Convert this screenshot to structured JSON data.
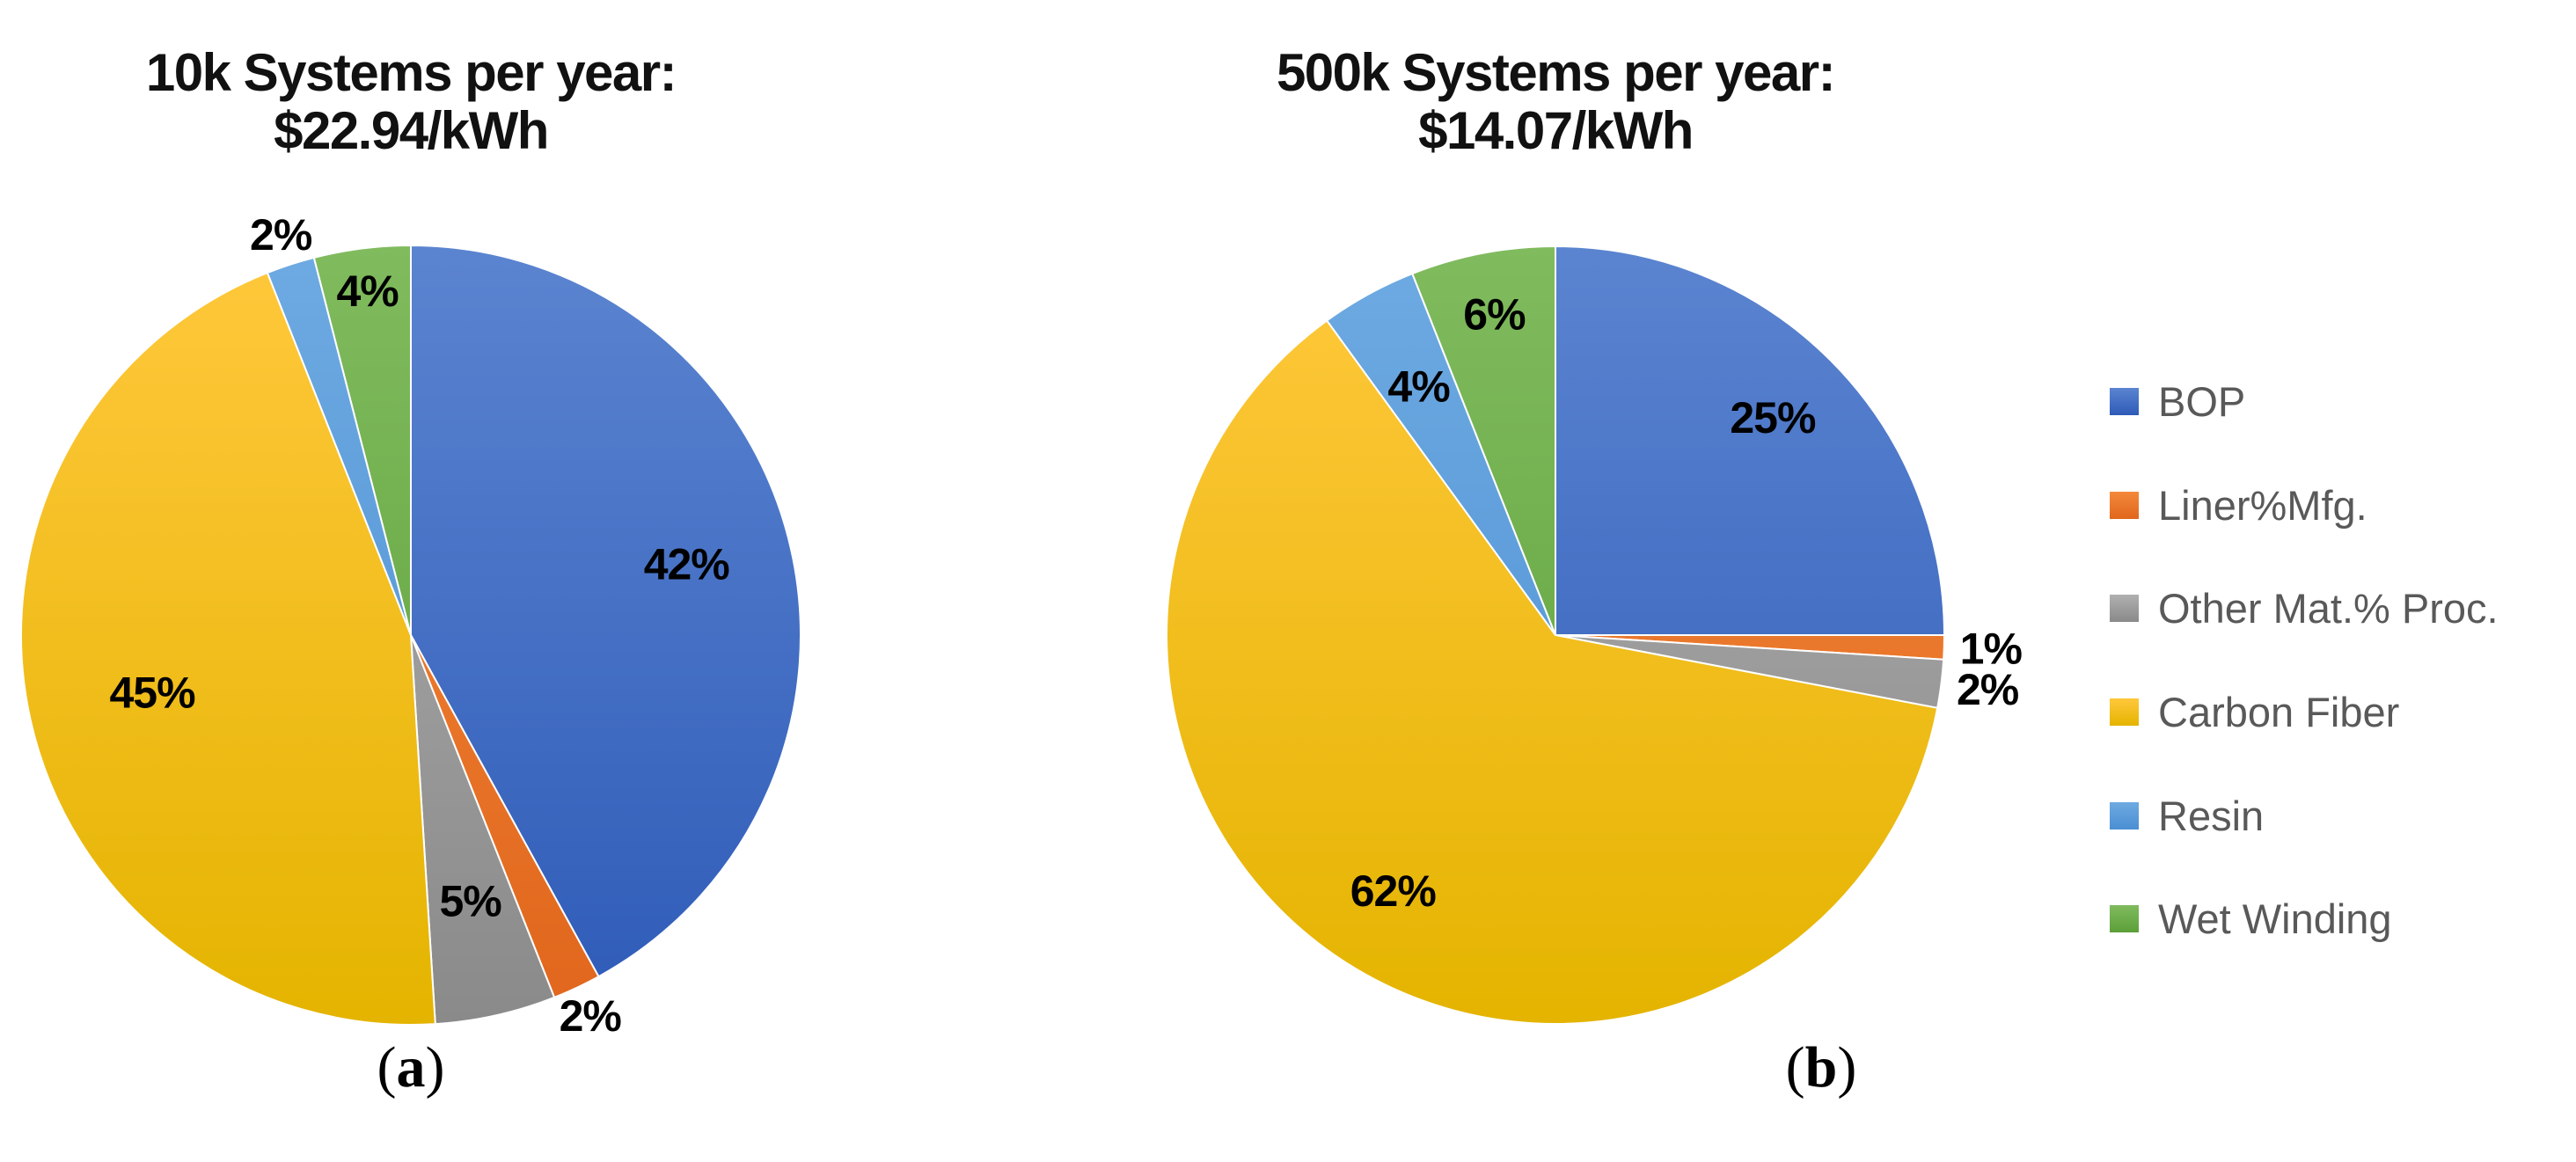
{
  "chart_data": [
    {
      "type": "pie",
      "title": [
        "10k Systems per year:",
        "$22.94/kWh"
      ],
      "panel_label": "a",
      "categories": [
        "BOP",
        "Liner%Mfg.",
        "Other Mat.% Proc.",
        "Carbon Fiber",
        "Resin",
        "Wet Winding"
      ],
      "values": [
        42,
        2,
        5,
        45,
        2,
        4
      ],
      "labels": [
        "42%",
        "2%",
        "5%",
        "45%",
        "2%",
        "4%"
      ]
    },
    {
      "type": "pie",
      "title": [
        "500k Systems per year:",
        "$14.07/kWh"
      ],
      "panel_label": "b",
      "categories": [
        "BOP",
        "Liner%Mfg.",
        "Other Mat.% Proc.",
        "Carbon Fiber",
        "Resin",
        "Wet Winding"
      ],
      "values": [
        25,
        1,
        2,
        62,
        4,
        6
      ],
      "labels": [
        "25%",
        "1%",
        "2%",
        "62%",
        "4%",
        "6%"
      ]
    }
  ],
  "legend": {
    "placement": "right",
    "items": [
      "BOP",
      "Liner%Mfg.",
      "Other Mat.% Proc.",
      "Carbon Fiber",
      "Resin",
      "Wet Winding"
    ]
  },
  "colors": {
    "BOP": [
      "#5b84d0",
      "#2e5bb8"
    ],
    "Liner%Mfg.": [
      "#f48a3c",
      "#e0661c"
    ],
    "Other Mat.% Proc.": [
      "#b0b0b0",
      "#8a8a8a"
    ],
    "Carbon Fiber": [
      "#ffc83c",
      "#e4b400"
    ],
    "Resin": [
      "#6eaae2",
      "#4a8ed2"
    ],
    "Wet Winding": [
      "#80bb5e",
      "#5c9f38"
    ]
  }
}
